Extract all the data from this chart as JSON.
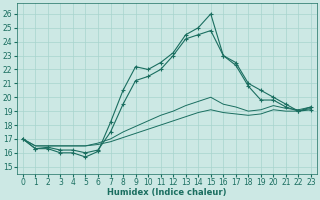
{
  "xlabel": "Humidex (Indice chaleur)",
  "xlim": [
    -0.5,
    23.5
  ],
  "ylim": [
    14.5,
    26.8
  ],
  "xticks": [
    0,
    1,
    2,
    3,
    4,
    5,
    6,
    7,
    8,
    9,
    10,
    11,
    12,
    13,
    14,
    15,
    16,
    17,
    18,
    19,
    20,
    21,
    22,
    23
  ],
  "yticks": [
    15,
    16,
    17,
    18,
    19,
    20,
    21,
    22,
    23,
    24,
    25,
    26
  ],
  "bg_color": "#cce8e4",
  "grid_color": "#a8d4ce",
  "line_color": "#1a6e60",
  "series0": [
    17.0,
    16.3,
    16.3,
    16.0,
    16.0,
    15.7,
    16.1,
    18.2,
    20.5,
    22.2,
    22.0,
    22.5,
    23.2,
    24.5,
    25.0,
    26.0,
    23.0,
    22.5,
    21.0,
    20.5,
    20.0,
    19.5,
    19.0,
    19.3
  ],
  "series1": [
    17.0,
    16.3,
    16.4,
    16.2,
    16.2,
    16.0,
    16.2,
    17.5,
    19.5,
    21.2,
    21.5,
    22.0,
    23.0,
    24.2,
    24.5,
    24.8,
    23.0,
    22.3,
    20.8,
    19.8,
    19.8,
    19.3,
    19.0,
    19.1
  ],
  "series2": [
    17.0,
    16.5,
    16.5,
    16.5,
    16.5,
    16.5,
    16.7,
    17.0,
    17.5,
    17.9,
    18.3,
    18.7,
    19.0,
    19.4,
    19.7,
    20.0,
    19.5,
    19.3,
    19.0,
    19.1,
    19.4,
    19.2,
    19.1,
    19.3
  ],
  "series3": [
    17.0,
    16.5,
    16.5,
    16.5,
    16.5,
    16.5,
    16.6,
    16.8,
    17.1,
    17.4,
    17.7,
    18.0,
    18.3,
    18.6,
    18.9,
    19.1,
    18.9,
    18.8,
    18.7,
    18.8,
    19.1,
    19.0,
    19.0,
    19.2
  ]
}
